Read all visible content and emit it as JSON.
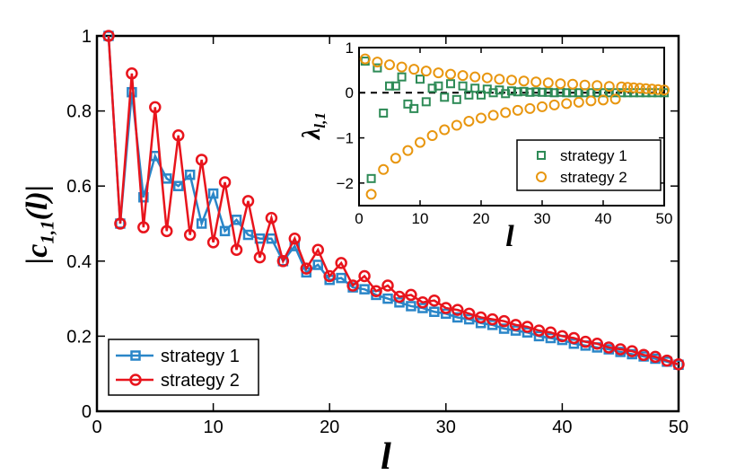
{
  "chart_data": [
    {
      "type": "line",
      "panel": "main",
      "xlabel": "l",
      "ylabel_prefix": "|c",
      "ylabel_sub": "1,1",
      "ylabel_suffix": "(l)|",
      "xlim": [
        0,
        50
      ],
      "ylim": [
        0,
        1
      ],
      "xticks": [
        0,
        10,
        20,
        30,
        40,
        50
      ],
      "yticks": [
        0,
        0.2,
        0.4,
        0.6,
        0.8,
        1
      ],
      "xtick_labels": [
        "0",
        "10",
        "20",
        "30",
        "40",
        "50"
      ],
      "ytick_labels": [
        "0",
        "0.2",
        "0.4",
        "0.6",
        "0.8",
        "1"
      ],
      "legend_position": "bottom-left",
      "series": [
        {
          "name": "strategy 1",
          "color": "#2a86c8",
          "marker": "square",
          "x": [
            1,
            2,
            3,
            4,
            5,
            6,
            7,
            8,
            9,
            10,
            11,
            12,
            13,
            14,
            15,
            16,
            17,
            18,
            19,
            20,
            21,
            22,
            23,
            24,
            25,
            26,
            27,
            28,
            29,
            30,
            31,
            32,
            33,
            34,
            35,
            36,
            37,
            38,
            39,
            40,
            41,
            42,
            43,
            44,
            45,
            46,
            47,
            48,
            49,
            50
          ],
          "y": [
            1.0,
            0.5,
            0.85,
            0.57,
            0.68,
            0.62,
            0.6,
            0.63,
            0.5,
            0.58,
            0.48,
            0.51,
            0.47,
            0.46,
            0.46,
            0.4,
            0.44,
            0.37,
            0.39,
            0.35,
            0.355,
            0.33,
            0.325,
            0.31,
            0.3,
            0.29,
            0.28,
            0.275,
            0.265,
            0.26,
            0.25,
            0.245,
            0.235,
            0.23,
            0.22,
            0.215,
            0.21,
            0.2,
            0.195,
            0.19,
            0.18,
            0.175,
            0.17,
            0.165,
            0.158,
            0.152,
            0.146,
            0.14,
            0.132,
            0.124
          ]
        },
        {
          "name": "strategy 2",
          "color": "#e8141c",
          "marker": "circle",
          "x": [
            1,
            2,
            3,
            4,
            5,
            6,
            7,
            8,
            9,
            10,
            11,
            12,
            13,
            14,
            15,
            16,
            17,
            18,
            19,
            20,
            21,
            22,
            23,
            24,
            25,
            26,
            27,
            28,
            29,
            30,
            31,
            32,
            33,
            34,
            35,
            36,
            37,
            38,
            39,
            40,
            41,
            42,
            43,
            44,
            45,
            46,
            47,
            48,
            49,
            50
          ],
          "y": [
            1.0,
            0.5,
            0.9,
            0.49,
            0.81,
            0.48,
            0.735,
            0.47,
            0.67,
            0.45,
            0.61,
            0.43,
            0.56,
            0.41,
            0.515,
            0.4,
            0.46,
            0.38,
            0.43,
            0.36,
            0.395,
            0.335,
            0.36,
            0.32,
            0.335,
            0.305,
            0.31,
            0.29,
            0.295,
            0.275,
            0.27,
            0.26,
            0.25,
            0.245,
            0.24,
            0.23,
            0.225,
            0.215,
            0.21,
            0.2,
            0.195,
            0.185,
            0.18,
            0.17,
            0.165,
            0.16,
            0.15,
            0.145,
            0.135,
            0.125
          ]
        }
      ]
    },
    {
      "type": "scatter",
      "panel": "inset",
      "xlabel": "l",
      "ylabel_prefix": "λ",
      "ylabel_sub": "l,1",
      "xlim": [
        0,
        50
      ],
      "ylim": [
        -2.5,
        1
      ],
      "xticks": [
        0,
        10,
        20,
        30,
        40,
        50
      ],
      "yticks": [
        -2,
        -1,
        0,
        1
      ],
      "xtick_labels": [
        "0",
        "10",
        "20",
        "30",
        "40",
        "50"
      ],
      "ytick_labels": [
        "−2",
        "−1",
        "0",
        "1"
      ],
      "zero_line": "dashed",
      "legend_position": "bottom-right",
      "series": [
        {
          "name": "strategy 1",
          "color": "#2e8b57",
          "marker": "square",
          "x": [
            1,
            2,
            3,
            4,
            5,
            6,
            7,
            8,
            9,
            10,
            11,
            12,
            13,
            14,
            15,
            16,
            17,
            18,
            19,
            20,
            21,
            22,
            23,
            24,
            25,
            26,
            27,
            28,
            29,
            30,
            31,
            32,
            33,
            34,
            35,
            36,
            37,
            38,
            39,
            40,
            41,
            42,
            43,
            44,
            45,
            46,
            47,
            48,
            49,
            50
          ],
          "y": [
            0.7,
            -1.9,
            0.55,
            -0.45,
            0.15,
            0.15,
            0.35,
            -0.25,
            -0.35,
            0.3,
            -0.2,
            0.1,
            0.15,
            -0.1,
            0.2,
            -0.15,
            0.15,
            -0.05,
            0.1,
            -0.05,
            0.08,
            0.0,
            0.06,
            -0.02,
            0.04,
            0.02,
            0.03,
            0.01,
            0.02,
            0.01,
            0.01,
            0.0,
            0.01,
            0.0,
            0.0,
            0.0,
            0.0,
            0.0,
            0.0,
            0.0,
            0.0,
            0.0,
            0.0,
            0.0,
            0.0,
            0.0,
            0.0,
            0.0,
            0.0,
            0.0
          ]
        },
        {
          "name": "strategy 2",
          "color": "#e8960f",
          "marker": "circle",
          "x": [
            1,
            2,
            3,
            4,
            5,
            6,
            7,
            8,
            9,
            10,
            11,
            12,
            13,
            14,
            15,
            16,
            17,
            18,
            19,
            20,
            21,
            22,
            23,
            24,
            25,
            26,
            27,
            28,
            29,
            30,
            31,
            32,
            33,
            34,
            35,
            36,
            37,
            38,
            39,
            40,
            41,
            42,
            43,
            44,
            45,
            46,
            47,
            48,
            49,
            50
          ],
          "y": [
            0.75,
            -2.25,
            0.68,
            -1.7,
            0.62,
            -1.45,
            0.57,
            -1.28,
            0.52,
            -1.1,
            0.48,
            -0.95,
            0.44,
            -0.82,
            0.41,
            -0.72,
            0.38,
            -0.63,
            0.35,
            -0.56,
            0.33,
            -0.5,
            0.3,
            -0.44,
            0.28,
            -0.39,
            0.26,
            -0.35,
            0.24,
            -0.31,
            0.22,
            -0.27,
            0.2,
            -0.24,
            0.19,
            -0.21,
            0.17,
            -0.18,
            0.16,
            -0.16,
            0.14,
            -0.14,
            0.13,
            0.12,
            0.11,
            0.1,
            0.09,
            0.08,
            0.07,
            0.06
          ]
        }
      ]
    }
  ]
}
